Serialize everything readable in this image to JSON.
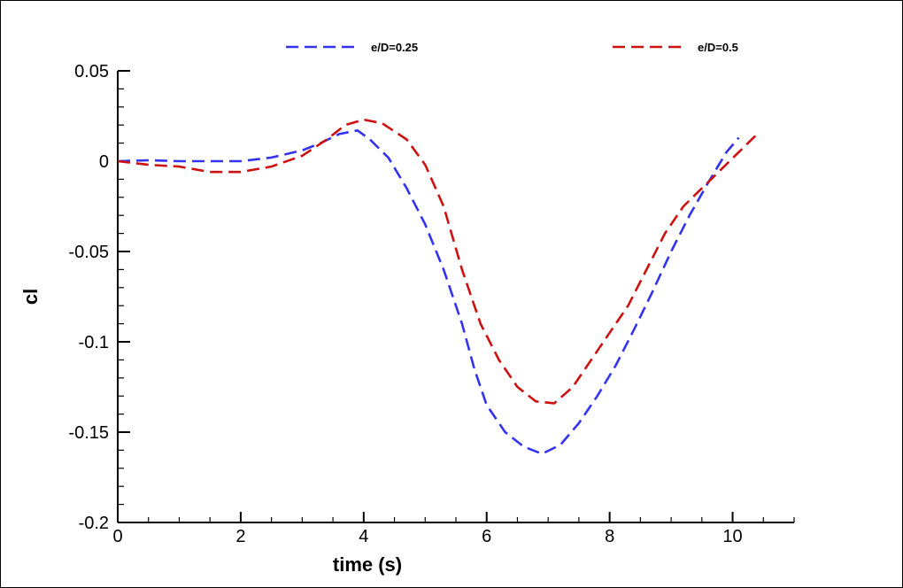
{
  "chart_data": {
    "type": "line",
    "title": "",
    "xlabel": "time (s)",
    "ylabel": "cl",
    "xlim": [
      0,
      11
    ],
    "ylim": [
      -0.2,
      0.05
    ],
    "xticks": [
      0,
      2,
      4,
      6,
      8,
      10
    ],
    "xtick_labels": [
      "0",
      "2",
      "4",
      "6",
      "8",
      "10"
    ],
    "yticks": [
      0.05,
      0,
      -0.05,
      -0.1,
      -0.15,
      -0.2
    ],
    "ytick_labels": [
      "0.05",
      "0",
      "-0.05",
      "-0.1",
      "-0.15",
      "-0.2"
    ],
    "grid": false,
    "legend_position": "top",
    "series": [
      {
        "name": "e/D=0.25",
        "color": "#3333ee",
        "dash": "dashed",
        "x": [
          0,
          0.5,
          1.0,
          1.5,
          2.0,
          2.5,
          3.0,
          3.3,
          3.6,
          3.9,
          4.1,
          4.4,
          4.7,
          5.0,
          5.3,
          5.6,
          5.8,
          6.0,
          6.3,
          6.6,
          6.9,
          7.2,
          7.5,
          7.8,
          8.1,
          8.4,
          8.7,
          9.0,
          9.3,
          9.6,
          9.9,
          10.1
        ],
        "y": [
          0.0,
          0.0005,
          0.0,
          0.0,
          0.0,
          0.002,
          0.006,
          0.01,
          0.015,
          0.017,
          0.012,
          0.002,
          -0.015,
          -0.035,
          -0.06,
          -0.09,
          -0.115,
          -0.135,
          -0.15,
          -0.158,
          -0.162,
          -0.157,
          -0.145,
          -0.13,
          -0.113,
          -0.093,
          -0.072,
          -0.05,
          -0.03,
          -0.012,
          0.005,
          0.013
        ]
      },
      {
        "name": "e/D=0.5",
        "color": "#cc1111",
        "dash": "dashed",
        "x": [
          0,
          0.5,
          1.0,
          1.5,
          2.0,
          2.5,
          3.0,
          3.4,
          3.7,
          4.0,
          4.3,
          4.7,
          5.0,
          5.3,
          5.6,
          5.9,
          6.2,
          6.5,
          6.8,
          7.1,
          7.4,
          7.7,
          8.0,
          8.3,
          8.6,
          8.9,
          9.2,
          9.5,
          9.8,
          10.1,
          10.4
        ],
        "y": [
          0.0,
          -0.002,
          -0.003,
          -0.006,
          -0.006,
          -0.003,
          0.003,
          0.012,
          0.02,
          0.023,
          0.021,
          0.012,
          -0.002,
          -0.025,
          -0.06,
          -0.09,
          -0.11,
          -0.125,
          -0.133,
          -0.134,
          -0.125,
          -0.11,
          -0.095,
          -0.08,
          -0.06,
          -0.04,
          -0.025,
          -0.015,
          -0.005,
          0.005,
          0.015
        ]
      }
    ]
  }
}
